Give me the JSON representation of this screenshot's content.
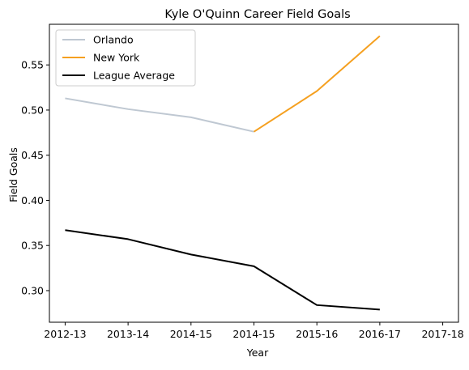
{
  "chart_data": {
    "type": "line",
    "title": "Kyle O'Quinn Career Field Goals",
    "xlabel": "Year",
    "ylabel": "Field Goals",
    "categories": [
      "2012-13",
      "2013-14",
      "2014-15",
      "2014-15",
      "2015-16",
      "2016-17",
      "2017-18"
    ],
    "xlim": [
      -0.25,
      6.25
    ],
    "ylim": [
      0.265,
      0.595
    ],
    "yticks": [
      0.3,
      0.35,
      0.4,
      0.45,
      0.5,
      0.55
    ],
    "yticklabels": [
      "0.30",
      "0.35",
      "0.40",
      "0.45",
      "0.50",
      "0.55"
    ],
    "grid": false,
    "legend": {
      "position": "top-left",
      "entries": [
        "Orlando",
        "New York",
        "League Average"
      ]
    },
    "series": [
      {
        "name": "Orlando",
        "color": "#bfc8d2",
        "x": [
          0,
          1,
          2,
          3
        ],
        "values": [
          0.513,
          0.501,
          0.492,
          0.476
        ]
      },
      {
        "name": "New York",
        "color": "#f5a020",
        "x": [
          3,
          4,
          5
        ],
        "values": [
          0.476,
          0.521,
          0.582
        ]
      },
      {
        "name": "League Average",
        "color": "#000000",
        "x": [
          0,
          1,
          2,
          3,
          4,
          5
        ],
        "values": [
          0.367,
          0.357,
          0.34,
          0.327,
          0.284,
          0.279
        ]
      }
    ]
  }
}
